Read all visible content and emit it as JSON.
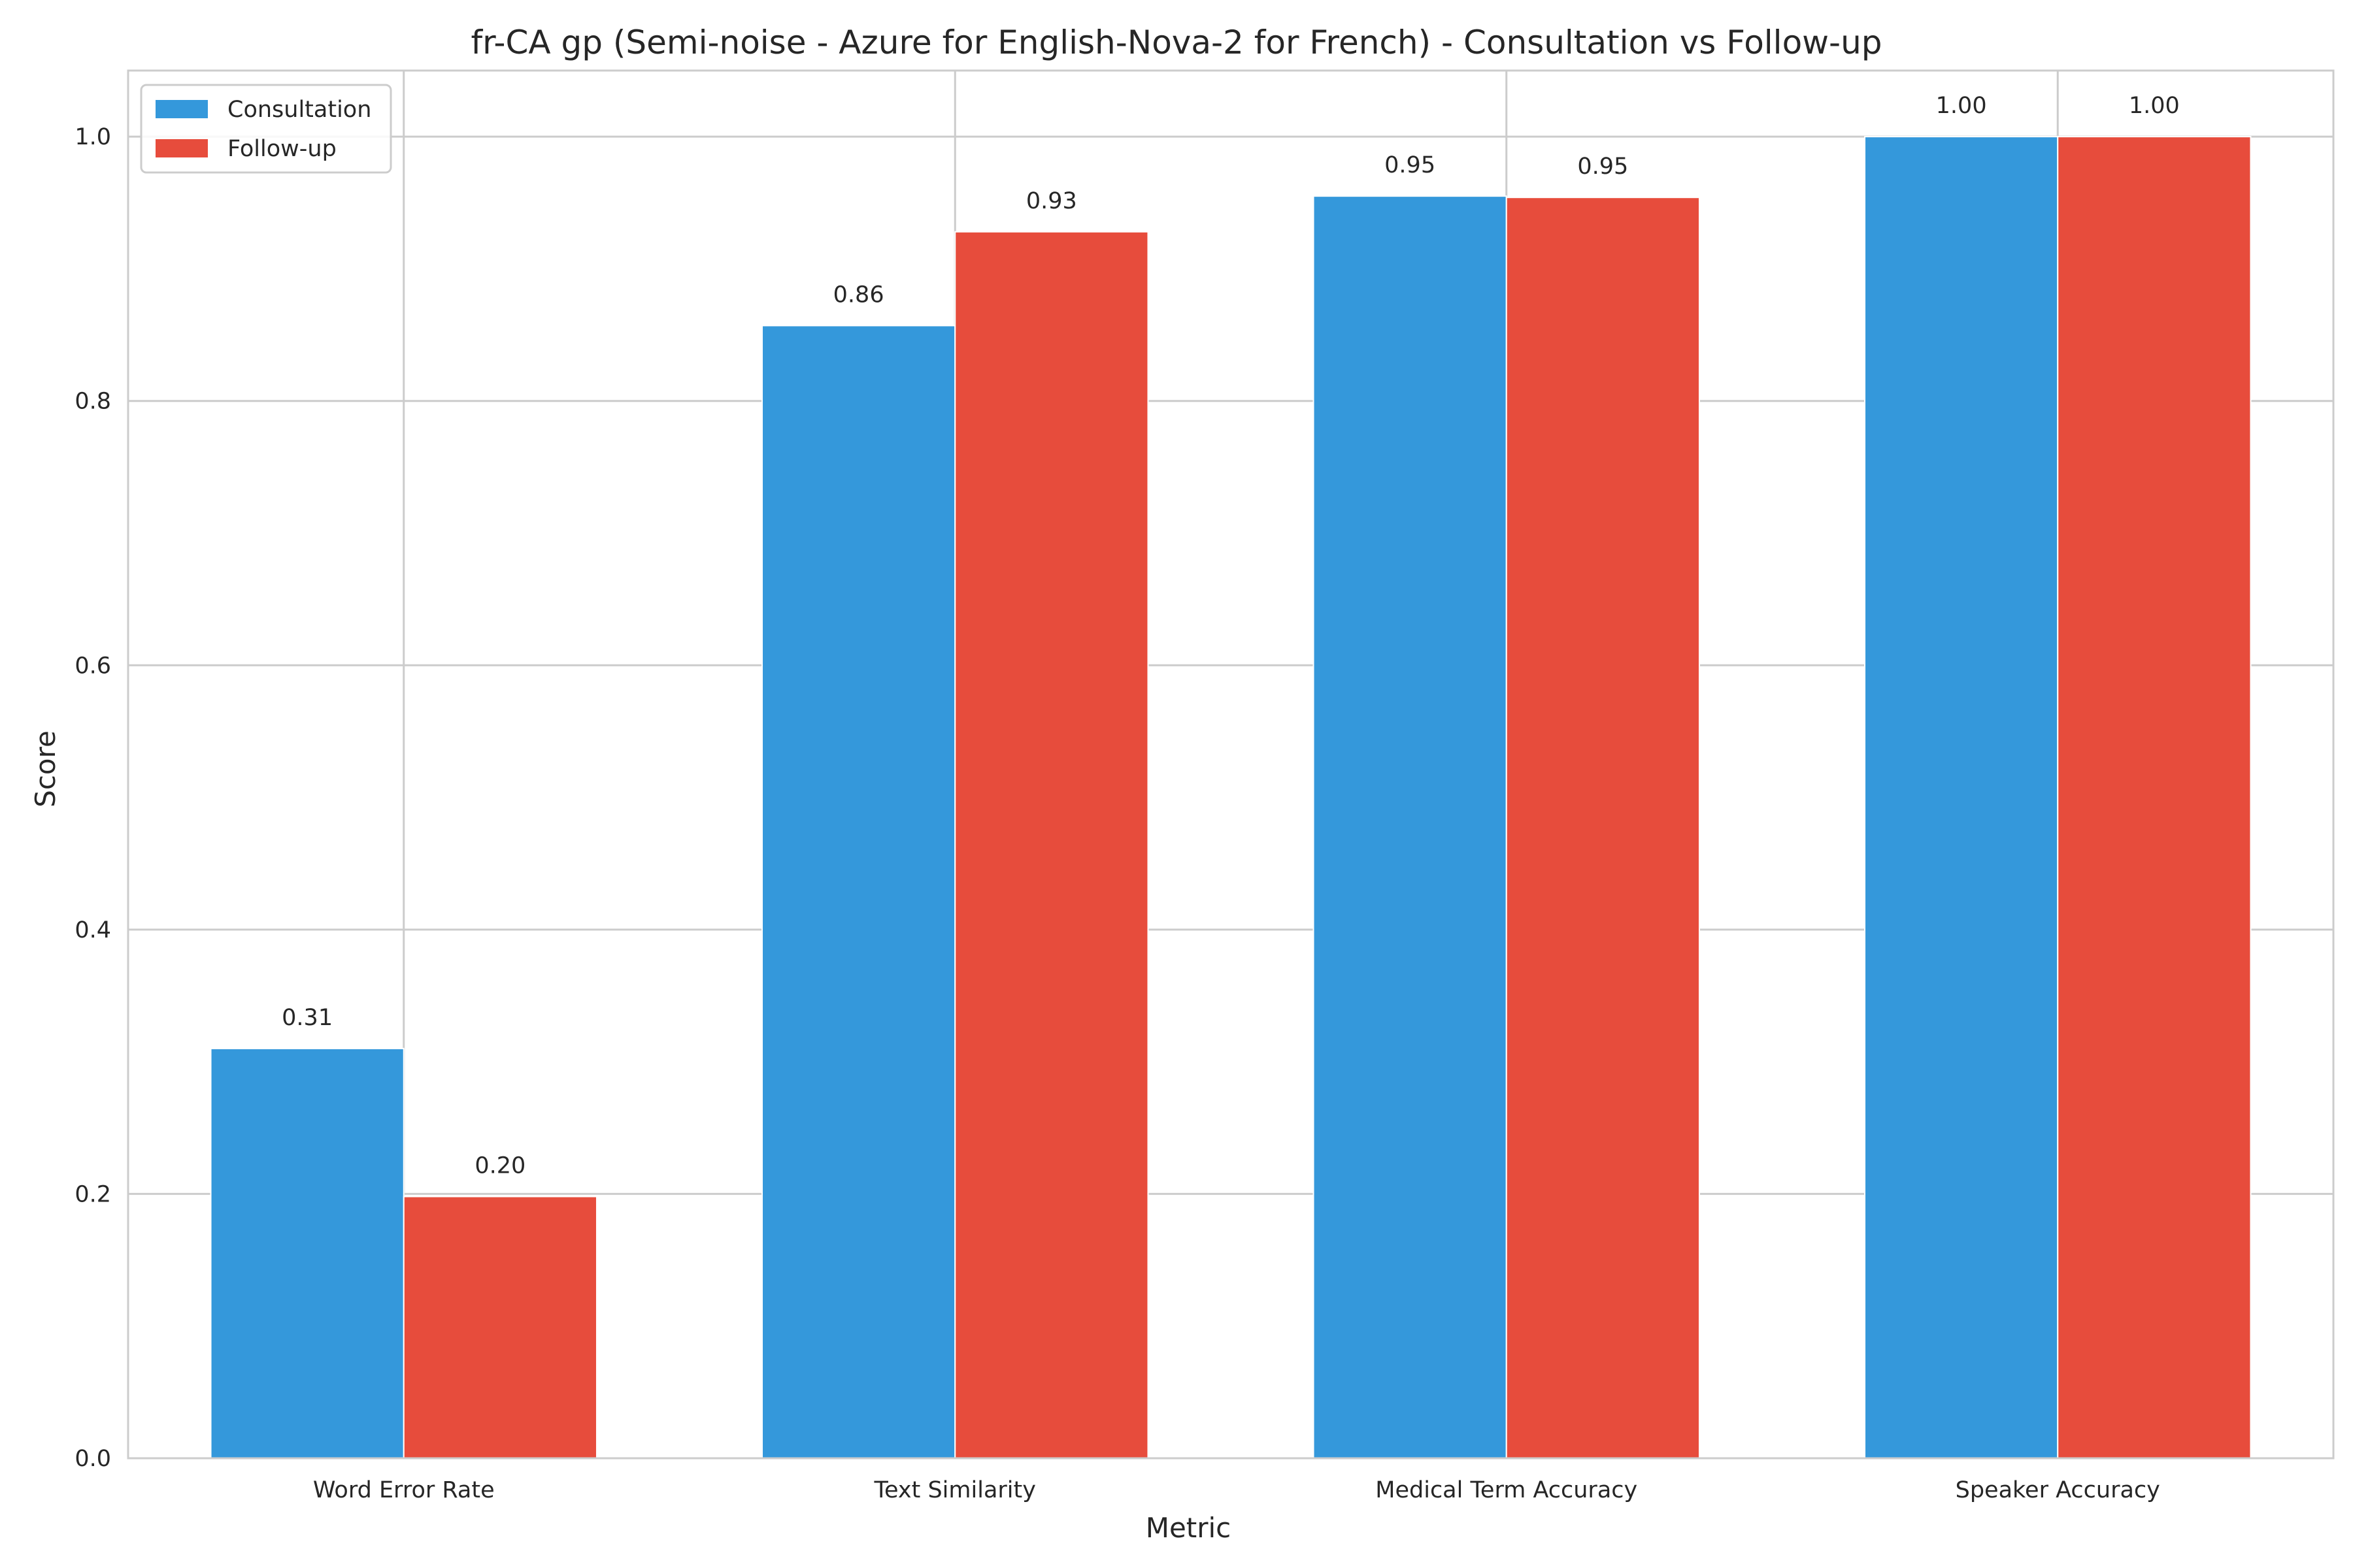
{
  "chart_data": {
    "type": "bar",
    "title": "fr-CA gp (Semi-noise - Azure for English-Nova-2 for French) - Consultation vs Follow-up",
    "xlabel": "Metric",
    "ylabel": "Score",
    "categories": [
      "Word Error Rate",
      "Text Similarity",
      "Medical Term Accuracy",
      "Speaker Accuracy"
    ],
    "series": [
      {
        "name": "Consultation",
        "color": "#3498db",
        "values": [
          0.31,
          0.857,
          0.955,
          1.0
        ],
        "labels": [
          "0.31",
          "0.86",
          "0.95",
          "1.00"
        ]
      },
      {
        "name": "Follow-up",
        "color": "#e74c3c",
        "values": [
          0.198,
          0.928,
          0.954,
          1.0
        ],
        "labels": [
          "0.20",
          "0.93",
          "0.95",
          "1.00"
        ]
      }
    ],
    "ylim": [
      0,
      1.05
    ],
    "yticks": [
      0.0,
      0.2,
      0.4,
      0.6,
      0.8,
      1.0
    ],
    "ytick_labels": [
      "0.0",
      "0.2",
      "0.4",
      "0.6",
      "0.8",
      "1.0"
    ],
    "grid": true,
    "legend_position": "top-left"
  }
}
